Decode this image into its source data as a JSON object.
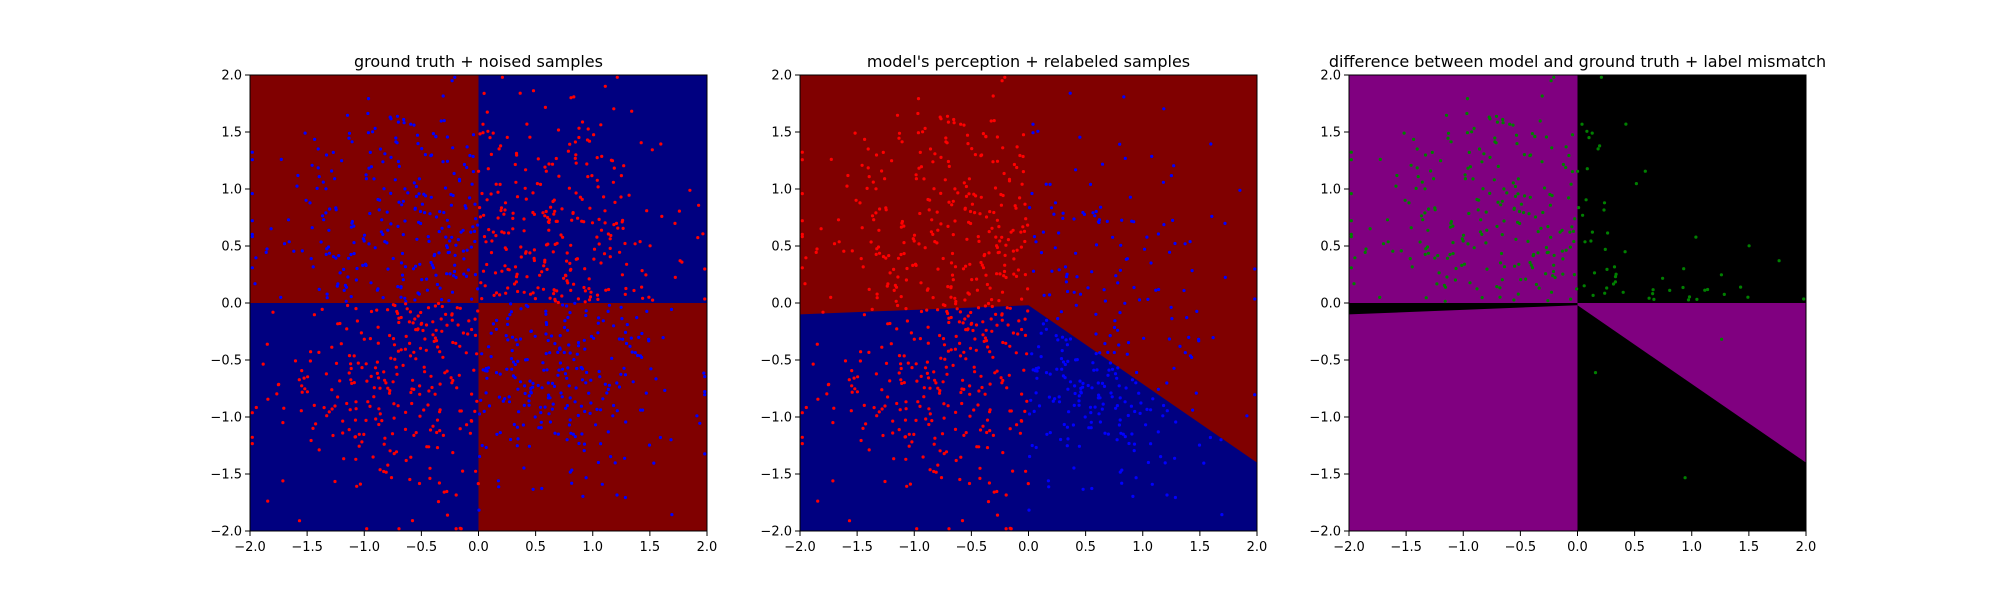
{
  "chart_data": [
    {
      "type": "heatmap",
      "title": "ground truth + noised samples",
      "xlabel": "",
      "ylabel": "",
      "xlim": [
        -2.0,
        2.0
      ],
      "ylim": [
        -2.0,
        2.0
      ],
      "xticks": [
        "−2.0",
        "−1.5",
        "−1.0",
        "−0.5",
        "0.0",
        "0.5",
        "1.0",
        "1.5",
        "2.0"
      ],
      "yticks": [
        "−2.0",
        "−1.5",
        "−1.0",
        "−0.5",
        "0.0",
        "0.5",
        "1.0",
        "1.5",
        "2.0"
      ],
      "grid": false,
      "legend": "none",
      "background_regions": [
        {
          "x": [
            -2.0,
            0.0
          ],
          "y": [
            0.0,
            2.0
          ],
          "color": "#800000"
        },
        {
          "x": [
            0.0,
            2.0
          ],
          "y": [
            0.0,
            2.0
          ],
          "color": "#000080"
        },
        {
          "x": [
            -2.0,
            0.0
          ],
          "y": [
            -2.0,
            0.0
          ],
          "color": "#000080"
        },
        {
          "x": [
            0.0,
            2.0
          ],
          "y": [
            -2.0,
            0.0
          ],
          "color": "#800000"
        }
      ],
      "scatter_series": [
        {
          "color": "#ff0000",
          "approx_count": 560,
          "description_region": "concentrated in top-right and bottom-left quadrants"
        },
        {
          "color": "#0000ff",
          "approx_count": 560,
          "description_region": "concentrated in top-left and bottom-right quadrants"
        }
      ]
    },
    {
      "type": "heatmap",
      "title": "model's perception + relabeled samples",
      "xlabel": "",
      "ylabel": "",
      "xlim": [
        -2.0,
        2.0
      ],
      "ylim": [
        -2.0,
        2.0
      ],
      "xticks": [
        "−2.0",
        "−1.5",
        "−1.0",
        "−0.5",
        "0.0",
        "0.5",
        "1.0",
        "1.5",
        "2.0"
      ],
      "yticks": [
        "−2.0",
        "−1.5",
        "−1.0",
        "−0.5",
        "0.0",
        "0.5",
        "1.0",
        "1.5",
        "2.0"
      ],
      "grid": false,
      "legend": "none",
      "decision_boundary": [
        [
          -2.0,
          -0.1
        ],
        [
          0.0,
          -0.02
        ],
        [
          2.0,
          -1.4
        ]
      ],
      "region_above_boundary_color": "#800000",
      "region_below_boundary_color": "#000080",
      "scatter_series": [
        {
          "color": "#ff0000",
          "approx_count": 560,
          "description_region": "left half (x < 0)"
        },
        {
          "color": "#0000ff",
          "approx_count": 560,
          "description_region": "right half (x > 0)"
        }
      ]
    },
    {
      "type": "heatmap",
      "title": "difference between model and ground truth + label mismatch",
      "xlabel": "",
      "ylabel": "",
      "xlim": [
        -2.0,
        2.0
      ],
      "ylim": [
        -2.0,
        2.0
      ],
      "xticks": [
        "−2.0",
        "−1.5",
        "−1.0",
        "−0.5",
        "0.0",
        "0.5",
        "1.0",
        "1.5",
        "2.0"
      ],
      "yticks": [
        "−2.0",
        "−1.5",
        "−1.0",
        "−0.5",
        "0.0",
        "0.5",
        "1.0",
        "1.5",
        "2.0"
      ],
      "grid": false,
      "legend": "none",
      "mismatch_color": "#800080",
      "match_color": "#000000",
      "scatter_series": [
        {
          "color": "#008000",
          "approx_count": 430,
          "description_region": "upper half (y > 0), plus a few stragglers"
        }
      ]
    }
  ]
}
